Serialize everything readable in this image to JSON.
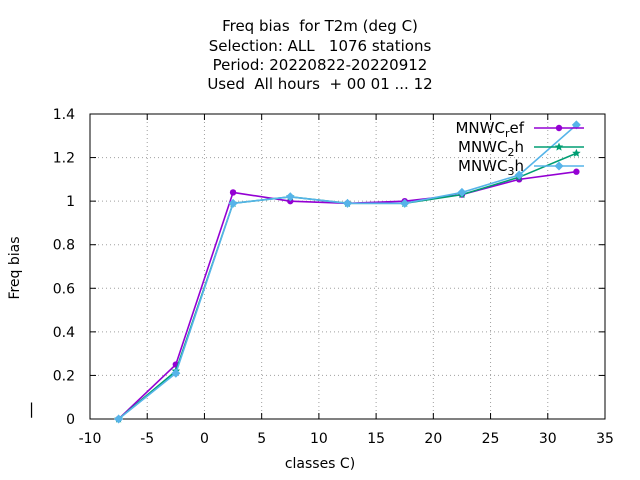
{
  "title_lines": [
    "Freq bias  for T2m (deg C)",
    "Selection: ALL   1076 stations",
    "Period: 20220822-20220912",
    "Used  All hours  + 00 01 ... 12"
  ],
  "chart_data": {
    "type": "line",
    "xlabel": "classes C)",
    "ylabel": "Freq bias",
    "xlim": [
      -10,
      35
    ],
    "ylim": [
      0,
      1.4
    ],
    "xticks": [
      -10,
      -5,
      0,
      5,
      10,
      15,
      20,
      25,
      30,
      35
    ],
    "yticks": [
      0,
      0.2,
      0.4,
      0.6,
      0.8,
      1,
      1.2,
      1.4
    ],
    "xtick_labels": [
      "-10",
      "-5",
      "0",
      "5",
      "10",
      "15",
      "20",
      "25",
      "30",
      "35"
    ],
    "ytick_labels": [
      "0",
      "0.2",
      "0.4",
      "0.6",
      "0.8",
      "1",
      "1.2",
      "1.4"
    ],
    "grid": true,
    "legend_position": "top-right",
    "x": [
      -7.5,
      -2.5,
      2.5,
      7.5,
      12.5,
      17.5,
      22.5,
      27.5,
      32.5
    ],
    "series": [
      {
        "name": "MNWC_ref",
        "legend_main": "MNWC",
        "legend_sub": "r",
        "legend_rest": "ef",
        "color": "#9400d3",
        "marker": "circle",
        "values": [
          0.0,
          0.25,
          1.04,
          1.0,
          0.99,
          1.0,
          1.03,
          1.1,
          1.135
        ]
      },
      {
        "name": "MNWC_2h",
        "legend_main": "MNWC",
        "legend_sub": "2",
        "legend_rest": "h",
        "color": "#009e73",
        "marker": "star",
        "values": [
          0.0,
          0.22,
          0.99,
          1.02,
          0.99,
          0.99,
          1.03,
          1.11,
          1.22
        ]
      },
      {
        "name": "MNWC_3h",
        "legend_main": "MNWC",
        "legend_sub": "3",
        "legend_rest": "h",
        "color": "#56b4e9",
        "marker": "diamond",
        "values": [
          0.0,
          0.21,
          0.99,
          1.02,
          0.99,
          0.99,
          1.04,
          1.12,
          1.35
        ]
      }
    ]
  },
  "stray_marker": "|"
}
